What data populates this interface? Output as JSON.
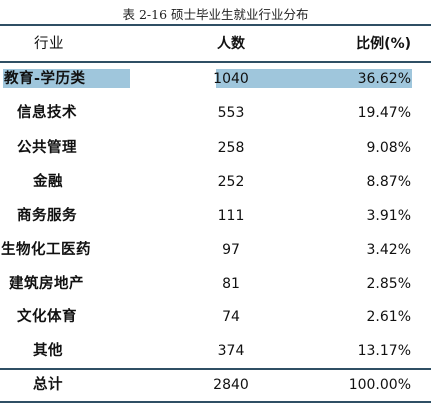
{
  "caption": "表 2-16   硕士毕业生就业行业分布",
  "headers": {
    "industry": "行业",
    "count": "人数",
    "ratio": "比例(%)"
  },
  "rows": [
    {
      "industry": "教育-学历类",
      "count": "1040",
      "ratio": "36.62%",
      "highlighted": true
    },
    {
      "industry": "信息技术",
      "count": "553",
      "ratio": "19.47%"
    },
    {
      "industry": "公共管理",
      "count": "258",
      "ratio": "9.08%"
    },
    {
      "industry": "金融",
      "count": "252",
      "ratio": "8.87%"
    },
    {
      "industry": "商务服务",
      "count": "111",
      "ratio": "3.91%"
    },
    {
      "industry": "生物化工医药",
      "count": "97",
      "ratio": "3.42%"
    },
    {
      "industry": "建筑房地产",
      "count": "81",
      "ratio": "2.85%"
    },
    {
      "industry": "文化体育",
      "count": "74",
      "ratio": "2.61%"
    },
    {
      "industry": "其他",
      "count": "374",
      "ratio": "13.17%"
    }
  ],
  "total": {
    "industry": "总计",
    "count": "2840",
    "ratio": "100.00%"
  },
  "colors": {
    "highlight": "#9fc6dc",
    "rule": "#2f4f64"
  }
}
